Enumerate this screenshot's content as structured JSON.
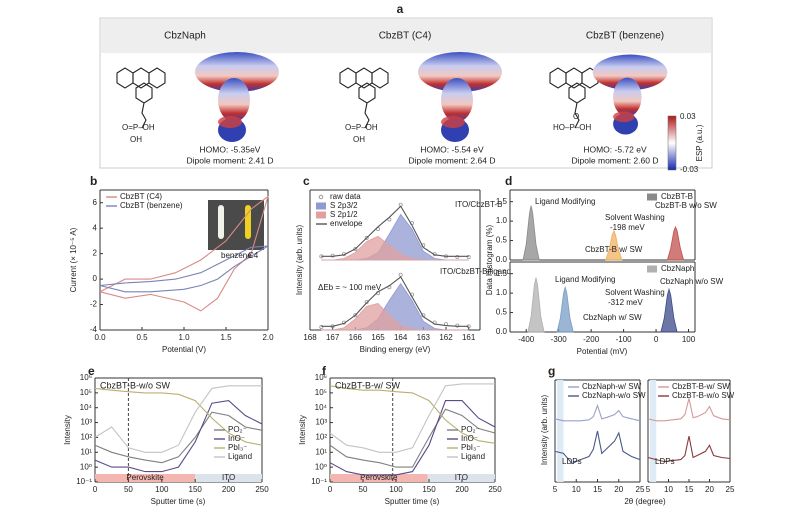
{
  "panel_a": {
    "label": "a",
    "molecules": [
      {
        "name": "CbzNaph",
        "phosphonic": "O=P–OH",
        "hydroxyl": "OH",
        "homo": "HOMO: -5.35eV",
        "dipole": "Dipole moment: 2.41 D"
      },
      {
        "name": "CbzBT (C4)",
        "phosphonic": "O=P–OH",
        "hydroxyl": "OH",
        "homo": "HOMO: -5.54 eV",
        "dipole": "Dipole moment: 2.64 D"
      },
      {
        "name": "CbzBT (benzene)",
        "phosphonic": "HO–P–OH",
        "hydroxyl": "O",
        "homo": "HOMO: -5.72 eV",
        "dipole": "Dipole moment: 2.60 D"
      }
    ],
    "colorbar": {
      "max": "0.03",
      "min": "-0.03",
      "label": "ESP (a.u.)"
    }
  },
  "chart_data": [
    {
      "type": "line",
      "label": "b",
      "xlabel": "Potential (V)",
      "ylabel": "Current (× 10⁻⁵ A)",
      "x": [
        0,
        0.3,
        0.6,
        0.9,
        1.2,
        1.5,
        1.8,
        2.0,
        1.8,
        1.6,
        1.4,
        1.2,
        1.0,
        0.6,
        0.3,
        0
      ],
      "series": [
        {
          "name": "CbzBT (C4)",
          "color": "#d98a84",
          "style": "line",
          "values": [
            -1,
            0,
            0,
            0.5,
            1.5,
            3,
            5.5,
            6.5,
            2,
            0.8,
            -1.5,
            -2.5,
            -1.8,
            -1.2,
            -1.5,
            -1
          ]
        },
        {
          "name": "CbzBT (benzene)",
          "color": "#7b83b5",
          "style": "line",
          "values": [
            -0.5,
            -0.3,
            -0.2,
            0,
            0.5,
            1.5,
            2.5,
            2.6,
            1.8,
            1,
            0,
            -0.5,
            -0.8,
            -1,
            -1,
            -0.5
          ]
        }
      ],
      "xlim": [
        0,
        2
      ],
      "ylim": [
        -4,
        7
      ],
      "xticks": [
        {
          "value": 0,
          "label": "0.0"
        },
        {
          "value": 0.5,
          "label": "0.5"
        },
        {
          "value": 1,
          "label": "1.0"
        },
        {
          "value": 1.5,
          "label": "1.5"
        },
        {
          "value": 2,
          "label": "2.0"
        }
      ],
      "yticks": [
        -4,
        -2,
        0,
        2,
        4,
        6
      ],
      "legend": "top-left",
      "annotations": [
        "benzene",
        "C4"
      ]
    },
    {
      "type": "line",
      "label": "c",
      "ylabel": "Intensity (arb. units)",
      "x": [
        167.5,
        167,
        166.5,
        166,
        165.5,
        165,
        164.5,
        164,
        163.5,
        163,
        162.5,
        162,
        161.5,
        161
      ],
      "series": [
        {
          "name": "raw data",
          "color": "#999999",
          "style": "markers",
          "values": [
            0.05,
            0.06,
            0.08,
            0.15,
            0.3,
            0.42,
            0.55,
            0.75,
            0.5,
            0.2,
            0.08,
            0.05,
            0.04,
            0.04
          ]
        },
        {
          "name": "S 2p3/2",
          "color": "#8f9ad0",
          "style": "area",
          "values": [
            0,
            0,
            0,
            0,
            0.02,
            0.1,
            0.35,
            0.62,
            0.42,
            0.12,
            0.02,
            0,
            0,
            0
          ]
        },
        {
          "name": "S 2p1/2",
          "color": "#e0a0a0",
          "style": "area",
          "values": [
            0,
            0,
            0.02,
            0.1,
            0.25,
            0.32,
            0.2,
            0.08,
            0.02,
            0,
            0,
            0,
            0,
            0
          ]
        },
        {
          "name": "envelope",
          "color": "#555555",
          "style": "line",
          "values": [
            0.05,
            0.05,
            0.07,
            0.15,
            0.3,
            0.45,
            0.58,
            0.73,
            0.47,
            0.17,
            0.07,
            0.05,
            0.05,
            0.05
          ]
        }
      ],
      "xlim": [
        168,
        160.5
      ],
      "ylim": [
        0,
        0.95
      ],
      "legend": "top-left",
      "annotations": [
        "ITO/CbzBT-B"
      ]
    },
    {
      "type": "line",
      "xlabel": "Binding energy (eV)",
      "x": [
        167.5,
        167,
        166.5,
        166,
        165.5,
        165,
        164.5,
        164,
        163.5,
        163,
        162.5,
        162,
        161.5,
        161
      ],
      "series": [
        {
          "color": "#999999",
          "style": "markers",
          "values": [
            0.04,
            0.05,
            0.1,
            0.2,
            0.38,
            0.5,
            0.58,
            0.75,
            0.48,
            0.2,
            0.1,
            0.08,
            0.06,
            0.05
          ]
        },
        {
          "color": "#8f9ad0",
          "style": "area",
          "values": [
            0,
            0,
            0,
            0,
            0.03,
            0.15,
            0.4,
            0.63,
            0.4,
            0.12,
            0.02,
            0,
            0,
            0
          ]
        },
        {
          "color": "#e0a0a0",
          "style": "area",
          "values": [
            0,
            0,
            0.03,
            0.15,
            0.32,
            0.36,
            0.2,
            0.06,
            0.01,
            0,
            0,
            0,
            0,
            0
          ]
        },
        {
          "color": "#555555",
          "style": "line",
          "values": [
            0.05,
            0.05,
            0.09,
            0.2,
            0.37,
            0.52,
            0.6,
            0.72,
            0.45,
            0.18,
            0.08,
            0.06,
            0.05,
            0.05
          ]
        }
      ],
      "xlim": [
        168,
        160.5
      ],
      "ylim": [
        0,
        0.95
      ],
      "xticks": [
        168,
        167,
        166,
        165,
        164,
        163,
        162,
        161
      ],
      "annotations": [
        "ITO/CbzBT-B/ligand",
        "ΔEb = ~ 100 meV"
      ]
    },
    {
      "type": "line",
      "label": "d",
      "ylabel": "Data Histogram (%)",
      "series": [
        {
          "name": "CbzBT-B",
          "color": "#8a8a8a",
          "style": "area",
          "x": [
            -410,
            -400,
            -390,
            -385,
            -380,
            -370,
            -360
          ],
          "values": [
            0,
            0.4,
            1.2,
            1.4,
            1.2,
            0.4,
            0
          ]
        },
        {
          "color": "#f0b060",
          "style": "area",
          "x": [
            -155,
            -145,
            -135,
            -130,
            -125,
            -115,
            -105
          ],
          "values": [
            0,
            0.25,
            0.65,
            0.75,
            0.65,
            0.25,
            0
          ]
        },
        {
          "color": "#c0504d",
          "style": "area",
          "x": [
            35,
            45,
            55,
            60,
            65,
            75,
            85
          ],
          "values": [
            0,
            0.3,
            0.75,
            0.85,
            0.75,
            0.3,
            0
          ]
        }
      ],
      "xlim": [
        -450,
        120
      ],
      "ylim": [
        0,
        1.8
      ],
      "yticks": [
        {
          "value": 0,
          "label": "0.0"
        },
        {
          "value": 0.5,
          "label": "0.5"
        },
        {
          "value": 1,
          "label": "1.0"
        },
        {
          "value": 1.5,
          "label": "1.5"
        }
      ],
      "legend": "top-right",
      "annotations": [
        "Ligand Modifying",
        "Solvent Washing",
        "-198 meV",
        "CbzBT-B w/o SW",
        "CbzBT-B w/ SW"
      ]
    },
    {
      "type": "line",
      "xlabel": "Potential (mV)",
      "series": [
        {
          "name": "CbzNaph",
          "color": "#b0b0b0",
          "style": "area",
          "x": [
            -395,
            -385,
            -375,
            -370,
            -365,
            -355,
            -345
          ],
          "values": [
            0,
            0.4,
            1.2,
            1.4,
            1.2,
            0.4,
            0
          ]
        },
        {
          "color": "#7a9cc6",
          "style": "area",
          "x": [
            -305,
            -295,
            -285,
            -280,
            -275,
            -265,
            -255
          ],
          "values": [
            0,
            0.35,
            1.0,
            1.15,
            1.0,
            0.35,
            0
          ]
        },
        {
          "color": "#3b4a8a",
          "style": "area",
          "x": [
            15,
            25,
            35,
            40,
            45,
            55,
            65
          ],
          "values": [
            0,
            0.35,
            0.95,
            1.1,
            0.95,
            0.35,
            0
          ]
        }
      ],
      "xlim": [
        -450,
        120
      ],
      "ylim": [
        0,
        1.8
      ],
      "xticks": [
        -400,
        -300,
        -200,
        -100,
        0,
        100
      ],
      "yticks": [
        {
          "value": 0,
          "label": "0.0"
        },
        {
          "value": 0.5,
          "label": "0.5"
        },
        {
          "value": 1,
          "label": "1.0"
        },
        {
          "value": 1.5,
          "label": "1.5"
        }
      ],
      "legend": "top-right",
      "annotations": [
        "Ligand Modifying",
        "Solvent Washing",
        "-312 meV",
        "CbzNaph w/o SW",
        "CbzNaph w/ SW"
      ]
    },
    {
      "type": "line",
      "label": "e",
      "title": "CbzBT-B-w/o SW",
      "xlabel": "Sputter time (s)",
      "ylabel": "Intensity",
      "yscale": "log",
      "x": [
        0,
        25,
        50,
        75,
        100,
        125,
        150,
        175,
        200,
        225,
        250
      ],
      "series": [
        {
          "name": "PO₂⁻",
          "color": "#7f7f7f",
          "style": "line",
          "values": [
            30,
            10,
            5,
            3,
            2,
            5,
            100,
            5000,
            3000,
            500,
            300
          ]
        },
        {
          "name": "InO⁻",
          "color": "#5a4a8a",
          "style": "line",
          "values": [
            3,
            1,
            1,
            0.5,
            0.5,
            1,
            50,
            20000,
            30000,
            3000,
            800
          ]
        },
        {
          "name": "PbI₃⁻",
          "color": "#b8b070",
          "style": "line",
          "values": [
            200000,
            150000,
            120000,
            100000,
            100000,
            80000,
            30000,
            2000,
            200,
            50,
            30
          ]
        },
        {
          "name": "Ligand",
          "color": "#c4c4c4",
          "style": "line",
          "values": [
            100,
            500,
            20,
            10,
            10,
            30,
            5000,
            200000,
            300000,
            300000,
            300000
          ]
        }
      ],
      "xlim": [
        0,
        250
      ],
      "ylim": [
        0.1,
        1000000
      ],
      "xticks": [
        0,
        50,
        100,
        150,
        200,
        250
      ],
      "yticks": [
        {
          "value": 0.1,
          "label": "10⁻¹"
        },
        {
          "value": 1,
          "label": "10⁰"
        },
        {
          "value": 10,
          "label": "10¹"
        },
        {
          "value": 100,
          "label": "10²"
        },
        {
          "value": 1000,
          "label": "10³"
        },
        {
          "value": 10000,
          "label": "10⁴"
        },
        {
          "value": 100000,
          "label": "10⁵"
        },
        {
          "value": 1000000,
          "label": "10⁶"
        }
      ],
      "vline": 50,
      "legend": "bottom-right",
      "regions": [
        {
          "name": "Perovskite",
          "from": 0,
          "to": 150,
          "color": "#f4b6b0"
        },
        {
          "name": "ITO",
          "from": 150,
          "to": 250,
          "color": "#dde3ea"
        }
      ]
    },
    {
      "type": "line",
      "label": "f",
      "title": "CbzBT-B-w/ SW",
      "xlabel": "Sputter time (s)",
      "ylabel": "Intensity",
      "yscale": "log",
      "x": [
        0,
        25,
        50,
        75,
        100,
        125,
        150,
        175,
        200,
        225,
        250
      ],
      "series": [
        {
          "name": "PO₂⁻",
          "color": "#7f7f7f",
          "style": "line",
          "values": [
            30,
            5,
            3,
            2,
            1,
            1,
            100,
            8000,
            3000,
            400,
            200
          ]
        },
        {
          "name": "InO⁻",
          "color": "#5a4a8a",
          "style": "line",
          "values": [
            2,
            0.5,
            0.3,
            0.3,
            0.3,
            0.5,
            30,
            30000,
            30000,
            2000,
            500
          ]
        },
        {
          "name": "PbI₃⁻",
          "color": "#b8b070",
          "style": "line",
          "values": [
            300000,
            200000,
            150000,
            150000,
            120000,
            100000,
            30000,
            1500,
            200,
            60,
            40
          ]
        },
        {
          "name": "Ligand",
          "color": "#c4c4c4",
          "style": "line",
          "values": [
            200,
            30,
            20,
            10,
            10,
            20,
            3000,
            300000,
            400000,
            400000,
            400000
          ]
        }
      ],
      "xlim": [
        0,
        250
      ],
      "ylim": [
        0.1,
        1000000
      ],
      "xticks": [
        0,
        50,
        100,
        150,
        200,
        250
      ],
      "yticks": [
        {
          "value": 0.1,
          "label": "10⁻¹"
        },
        {
          "value": 1,
          "label": "10⁰"
        },
        {
          "value": 10,
          "label": "10¹"
        },
        {
          "value": 100,
          "label": "10²"
        },
        {
          "value": 1000,
          "label": "10³"
        },
        {
          "value": 10000,
          "label": "10⁴"
        },
        {
          "value": 100000,
          "label": "10⁵"
        },
        {
          "value": 1000000,
          "label": "10⁶"
        }
      ],
      "vline": 95,
      "legend": "bottom-right",
      "regions": [
        {
          "name": "Perovskite",
          "from": 0,
          "to": 148,
          "color": "#f4b6b0"
        },
        {
          "name": "ITO",
          "from": 148,
          "to": 250,
          "color": "#dde3ea"
        }
      ]
    },
    {
      "type": "line",
      "label": "g",
      "ylabel": "Intensity (arb. units)",
      "xlabel": "2θ (degree)",
      "x": [
        5,
        7,
        9,
        11,
        13,
        14,
        15,
        16,
        17,
        19,
        20,
        21,
        23,
        25
      ],
      "series": [
        {
          "name": "CbzNaph-w/ SW",
          "color": "#9aa0c8",
          "style": "line",
          "values": [
            0.62,
            0.6,
            0.6,
            0.6,
            0.61,
            0.64,
            0.75,
            0.62,
            0.63,
            0.66,
            0.7,
            0.64,
            0.62,
            0.6
          ]
        },
        {
          "name": "CbzNaph-w/o SW",
          "color": "#4a5a8a",
          "style": "line",
          "values": [
            0.3,
            0.28,
            0.18,
            0.22,
            0.25,
            0.32,
            0.5,
            0.28,
            0.32,
            0.4,
            0.48,
            0.3,
            0.25,
            0.22
          ]
        }
      ],
      "xlim": [
        5,
        25
      ],
      "ylim": [
        0,
        1
      ],
      "xticks": [
        5,
        10,
        15,
        20,
        25
      ],
      "highlight": [
        5.5,
        7
      ],
      "legend": "top-right",
      "annotations": [
        "LDPs"
      ]
    },
    {
      "type": "line",
      "x": [
        5,
        7,
        9,
        11,
        13,
        14,
        15,
        16,
        17,
        19,
        20,
        21,
        23,
        25
      ],
      "series": [
        {
          "name": "CbzBT-B-w/ SW",
          "color": "#d49a98",
          "style": "line",
          "values": [
            0.62,
            0.6,
            0.6,
            0.61,
            0.62,
            0.66,
            0.82,
            0.63,
            0.64,
            0.68,
            0.74,
            0.65,
            0.62,
            0.61
          ]
        },
        {
          "name": "CbzBT-B-w/o SW",
          "color": "#8a3a3a",
          "style": "line",
          "values": [
            0.24,
            0.22,
            0.2,
            0.21,
            0.22,
            0.26,
            0.45,
            0.24,
            0.26,
            0.3,
            0.36,
            0.26,
            0.24,
            0.23
          ]
        }
      ],
      "xlim": [
        5,
        25
      ],
      "ylim": [
        0,
        1
      ],
      "xticks": [
        5,
        10,
        15,
        20,
        25
      ],
      "highlight": [
        5.5,
        7
      ],
      "legend": "top-right",
      "annotations": [
        "LDPs"
      ]
    }
  ]
}
